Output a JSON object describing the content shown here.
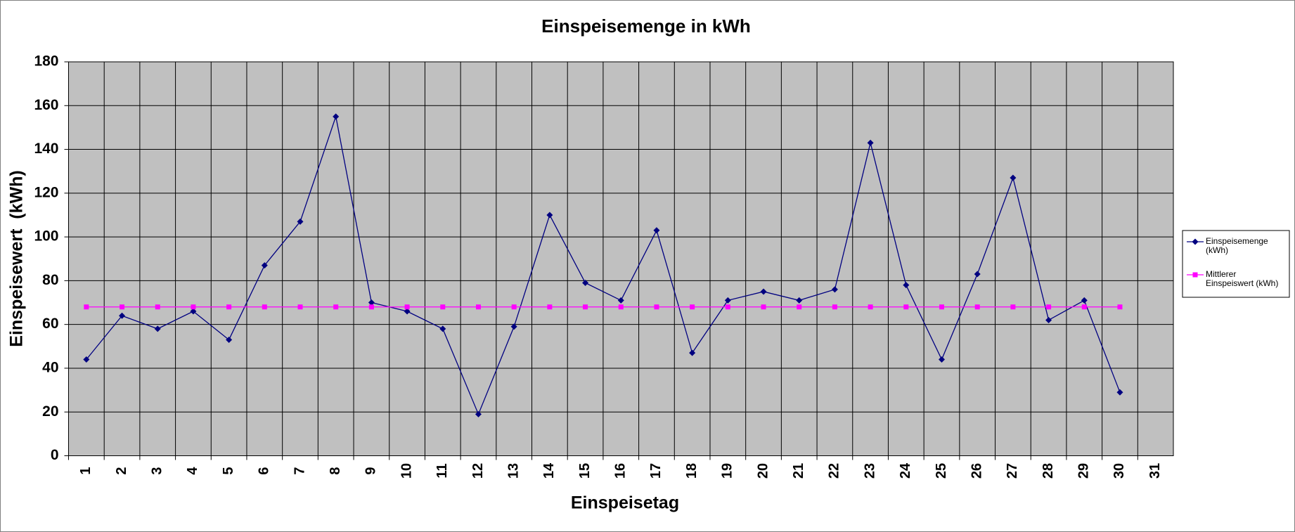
{
  "chart_data": {
    "type": "line",
    "title": "Einspeisemenge in kWh",
    "x_label": "Einspeisetag",
    "y_label": "Einspeisewert  (kWh)",
    "categories": [
      "1",
      "2",
      "3",
      "4",
      "5",
      "6",
      "7",
      "8",
      "9",
      "10",
      "11",
      "12",
      "13",
      "14",
      "15",
      "16",
      "17",
      "18",
      "19",
      "20",
      "21",
      "22",
      "23",
      "24",
      "25",
      "26",
      "27",
      "28",
      "29",
      "30",
      "31"
    ],
    "series": [
      {
        "name": "Einspeisemenge (kWh)",
        "color": "#000080",
        "marker": "diamond",
        "values": [
          44,
          64,
          58,
          66,
          53,
          87,
          107,
          155,
          70,
          66,
          58,
          19,
          59,
          110,
          79,
          71,
          103,
          47,
          71,
          75,
          71,
          76,
          143,
          78,
          44,
          83,
          127,
          62,
          71,
          29,
          null
        ]
      },
      {
        "name": "Mittlerer Einspeiswert (kWh)",
        "color": "#ff00ff",
        "marker": "square",
        "values": [
          68,
          68,
          68,
          68,
          68,
          68,
          68,
          68,
          68,
          68,
          68,
          68,
          68,
          68,
          68,
          68,
          68,
          68,
          68,
          68,
          68,
          68,
          68,
          68,
          68,
          68,
          68,
          68,
          68,
          68,
          null
        ]
      }
    ],
    "ylim": [
      0,
      180
    ],
    "yticks": [
      0,
      20,
      40,
      60,
      80,
      100,
      120,
      140,
      160,
      180
    ],
    "grid": true,
    "legend": "right",
    "plot_background": "#c0c0c0"
  }
}
